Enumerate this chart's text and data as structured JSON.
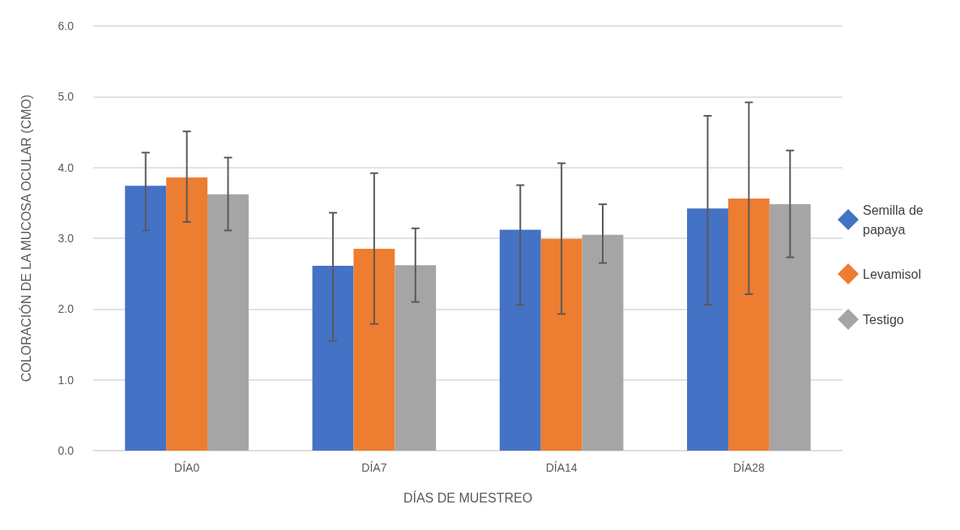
{
  "chart_data": {
    "type": "bar",
    "xlabel": "DÍAS DE MUESTREO",
    "ylabel": "COLORACIÓN DE LA MUCOSA OCULAR (CMO)",
    "categories": [
      "DÍA0",
      "DÍA7",
      "DÍA14",
      "DÍA28"
    ],
    "series": [
      {
        "name": "Semilla de papaya",
        "color": "#4472c4",
        "values": [
          3.74,
          2.61,
          3.12,
          3.42
        ],
        "errors": [
          [
            3.11,
            4.21
          ],
          [
            1.55,
            3.36
          ],
          [
            2.06,
            3.75
          ],
          [
            2.06,
            4.73
          ]
        ]
      },
      {
        "name": "Levamisol",
        "color": "#ed7d31",
        "values": [
          3.86,
          2.85,
          2.99,
          3.56
        ],
        "errors": [
          [
            3.23,
            4.51
          ],
          [
            1.79,
            3.92
          ],
          [
            1.93,
            4.06
          ],
          [
            2.21,
            4.92
          ]
        ]
      },
      {
        "name": "Testigo",
        "color": "#a5a5a5",
        "values": [
          3.62,
          2.62,
          3.05,
          3.48
        ],
        "errors": [
          [
            3.11,
            4.14
          ],
          [
            2.1,
            3.14
          ],
          [
            2.65,
            3.48
          ],
          [
            2.73,
            4.24
          ]
        ]
      }
    ],
    "ylim": [
      0,
      6
    ],
    "yticks": [
      {
        "value": 0,
        "label": "0.0"
      },
      {
        "value": 1,
        "label": "1.0"
      },
      {
        "value": 2,
        "label": "2.0"
      },
      {
        "value": 3,
        "label": "3.0"
      },
      {
        "value": 4,
        "label": "4.0"
      },
      {
        "value": 5,
        "label": "5.0"
      },
      {
        "value": 6,
        "label": "6.0"
      }
    ],
    "grid": "y",
    "legend": "right",
    "marker": "diamond"
  }
}
